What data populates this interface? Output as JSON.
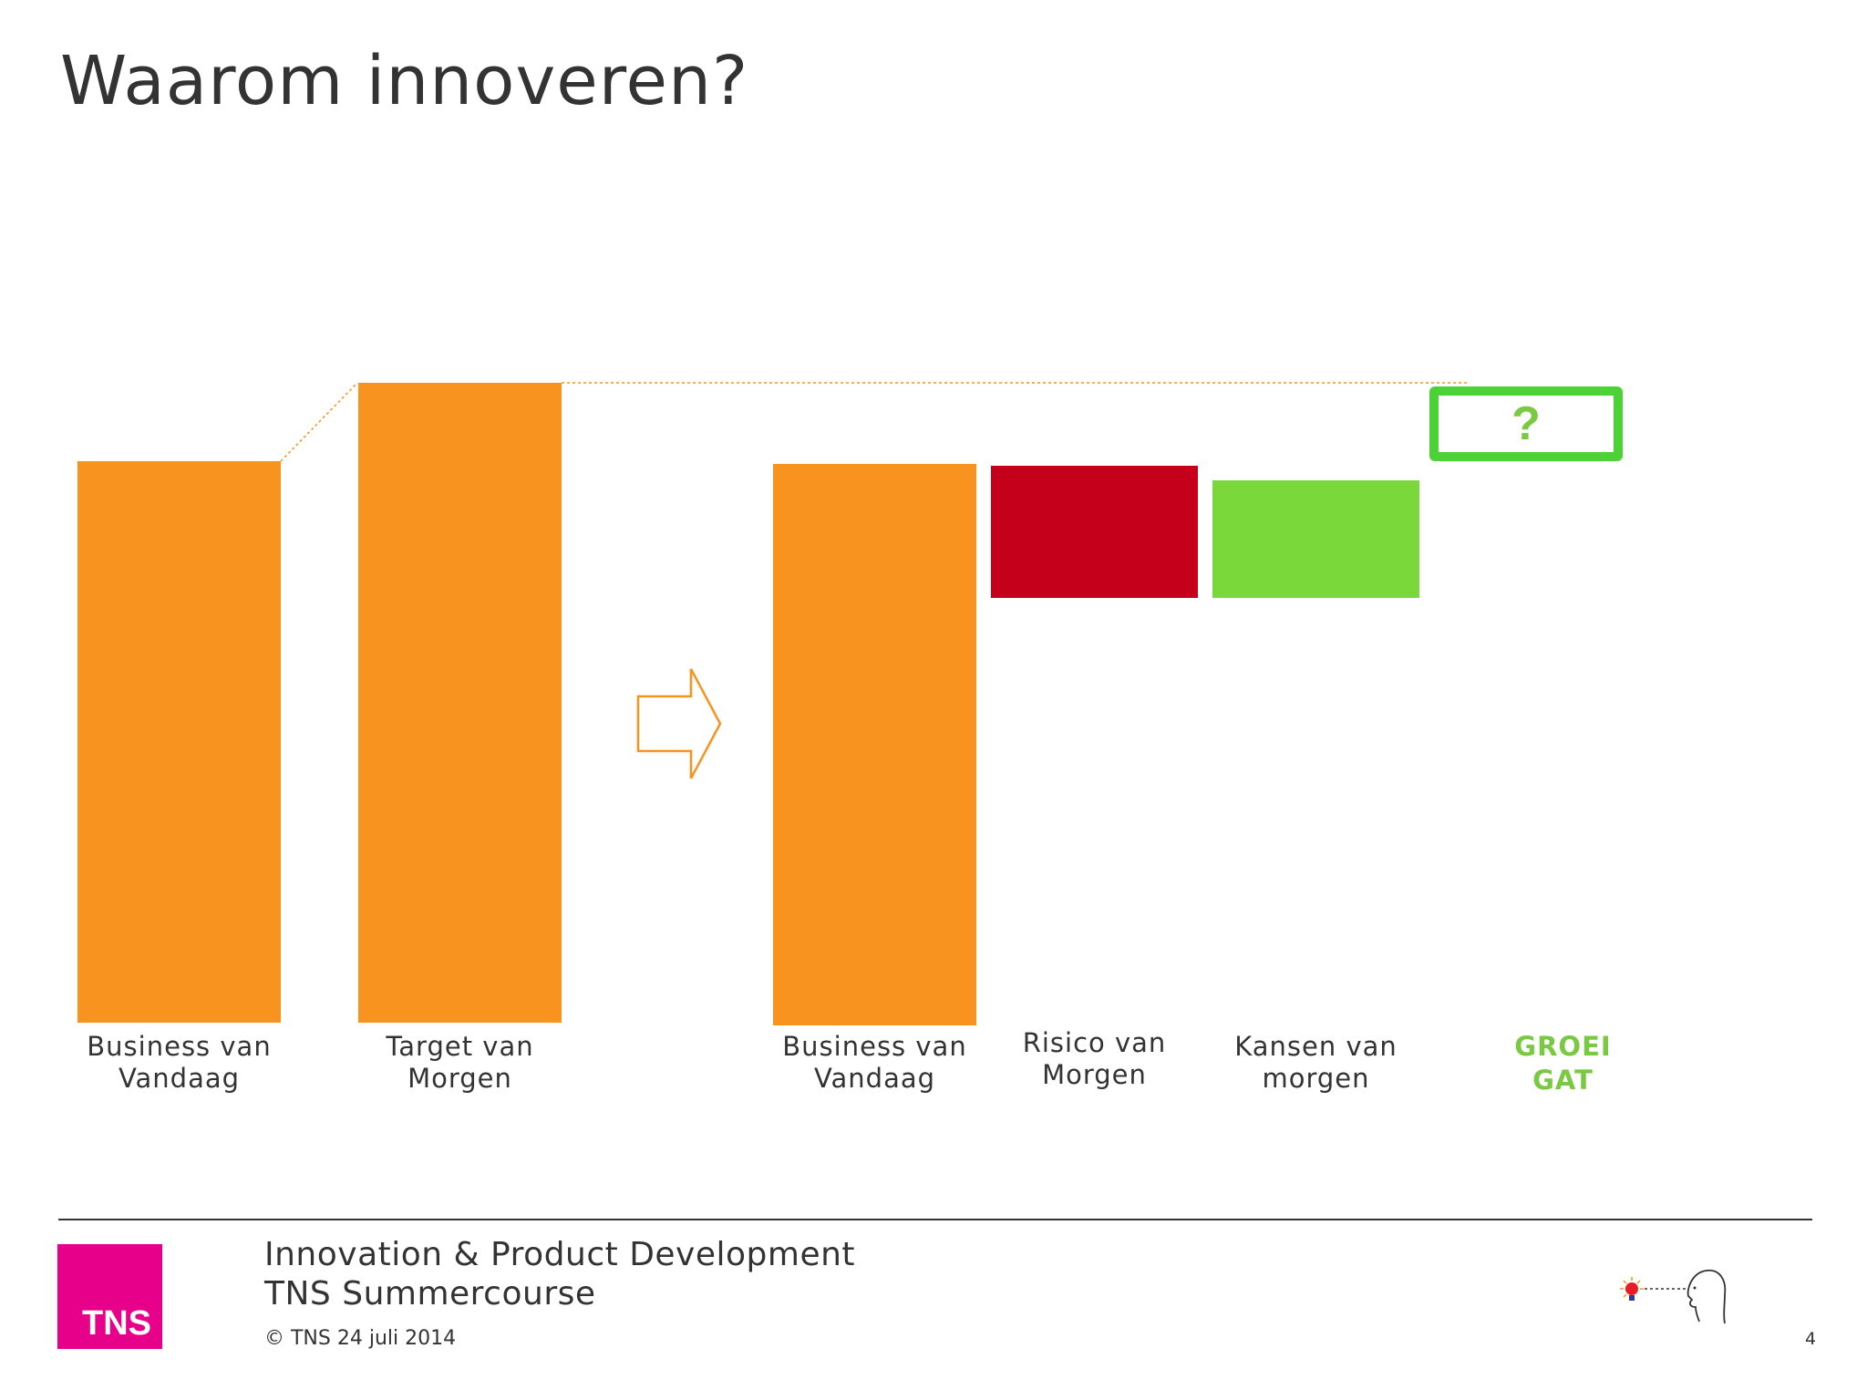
{
  "title": "Waarom innoveren?",
  "colors": {
    "orange": "#f7931e",
    "red": "#c4001a",
    "green": "#7ad83a",
    "gap_green": "#4cd137",
    "label_green": "#7ac943",
    "tns_pink": "#e6008a"
  },
  "chart_data": {
    "type": "bar",
    "categories": [
      "Business van Vandaag",
      "Target van Morgen",
      "Business van Vandaag",
      "Risico van Morgen",
      "Kansen van morgen",
      "GROEI GAT"
    ],
    "labels": [
      "Business van\nVandaag",
      "Target van\nMorgen",
      "Business van\nVandaag",
      "Risico van\nMorgen",
      "Kansen van\nmorgen",
      "GROEI\nGAT"
    ],
    "gap_marker": "?"
  },
  "arrow_icon": "outline-right-arrow-icon",
  "footer": {
    "line1": "Innovation & Product Development",
    "line2": "TNS Summercourse",
    "copyright": "© TNS 24 juli 2014",
    "page_number": "4",
    "logo_text": "TNS",
    "illustration": "idea-head-icon"
  }
}
